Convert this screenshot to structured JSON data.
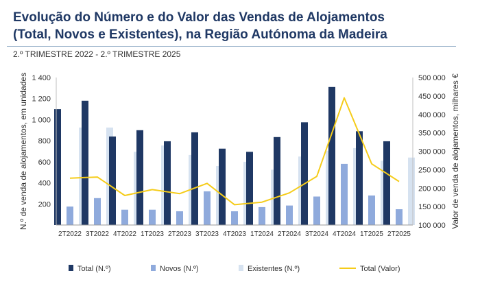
{
  "title_line1": "Evolução do Número e do Valor das Vendas de Alojamentos",
  "title_line2": "(Total, Novos e Existentes), na Região Autónoma da Madeira",
  "subtitle": "2.º TRIMESTRE 2022 - 2.º TRIMESTRE 2025",
  "chart_data": {
    "type": "bar",
    "categories": [
      "2T2022",
      "3T2022",
      "4T2022",
      "1T2023",
      "2T2023",
      "3T2023",
      "4T2023",
      "1T2024",
      "2T2024",
      "3T2024",
      "4T2024",
      "1T2025",
      "2T2025"
    ],
    "series": [
      {
        "name": "Total (N.º)",
        "type": "bar",
        "axis": "left",
        "color": "#1f3864",
        "values": [
          1100,
          1180,
          840,
          900,
          795,
          880,
          725,
          695,
          835,
          975,
          1310,
          890,
          795
        ]
      },
      {
        "name": "Novos (N.º)",
        "type": "bar",
        "axis": "left",
        "color": "#8faadc",
        "values": [
          175,
          255,
          145,
          145,
          130,
          320,
          130,
          170,
          185,
          270,
          580,
          280,
          150
        ]
      },
      {
        "name": "Existentes (N.º)",
        "type": "bar",
        "axis": "left",
        "color": "#d6e2f0",
        "values": [
          925,
          925,
          695,
          755,
          665,
          560,
          600,
          525,
          650,
          705,
          730,
          610,
          640
        ]
      },
      {
        "name": "Total (Valor)",
        "type": "line",
        "axis": "right",
        "color": "#f5cc1a",
        "values": [
          227000,
          230000,
          180000,
          196000,
          185000,
          213000,
          155000,
          162000,
          187000,
          232000,
          445000,
          266000,
          218000
        ]
      }
    ],
    "ylabel": "N.º de venda de alojamentos, em unidades",
    "ylabel_right": "Valor de venda de alojamentos, milhares €",
    "ylim": [
      0,
      1400
    ],
    "ylim_right": [
      100000,
      500000
    ],
    "y_ticks": [
      0,
      200,
      400,
      600,
      800,
      1000,
      1200,
      1400
    ],
    "y_tick_labels": [
      "",
      "200",
      "400",
      "600",
      "800",
      "1 000",
      "1 200",
      "1 400"
    ],
    "y_right_ticks": [
      100000,
      150000,
      200000,
      250000,
      300000,
      350000,
      400000,
      450000,
      500000
    ],
    "y_right_tick_labels": [
      "100 000",
      "150 000",
      "200 000",
      "250 000",
      "300 000",
      "350 000",
      "400 000",
      "450 000",
      "500 000"
    ],
    "grid": false,
    "legend_position": "bottom"
  }
}
